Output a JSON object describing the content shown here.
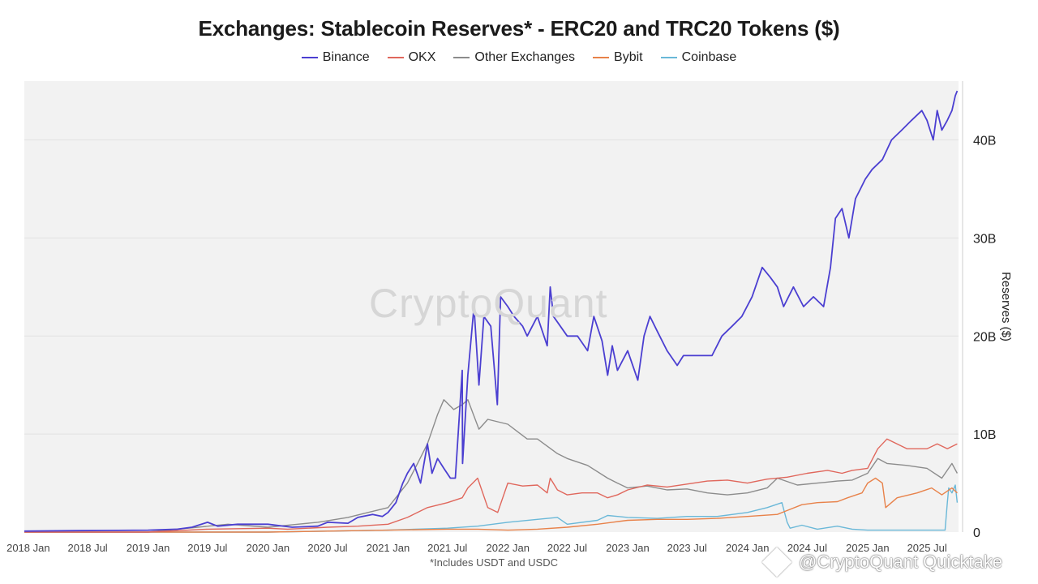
{
  "chart_data": {
    "type": "line",
    "title": "Exchanges: Stablecoin Reserves* - ERC20 and TRC20 Tokens ($)",
    "ylabel": "Reserves ($)",
    "xlabel": "",
    "footnote": "*Includes USDT and USDC",
    "watermark": "CryptoQuant",
    "attribution": "@CryptoQuant Quicktake",
    "legend_position": "top-center",
    "y_axis_position": "right",
    "grid": true,
    "ylim": [
      0,
      46
    ],
    "y_unit": "B",
    "yticks": [
      {
        "value": 0,
        "label": "0"
      },
      {
        "value": 10,
        "label": "10B"
      },
      {
        "value": 20,
        "label": "20B"
      },
      {
        "value": 30,
        "label": "30B"
      },
      {
        "value": 40,
        "label": "40B"
      }
    ],
    "xlim": [
      "2017-12-20",
      "2025-10-05"
    ],
    "xticks": [
      {
        "date": "2018-01-01",
        "label": "2018 Jan"
      },
      {
        "date": "2018-07-01",
        "label": "2018 Jul"
      },
      {
        "date": "2019-01-01",
        "label": "2019 Jan"
      },
      {
        "date": "2019-07-01",
        "label": "2019 Jul"
      },
      {
        "date": "2020-01-01",
        "label": "2020 Jan"
      },
      {
        "date": "2020-07-01",
        "label": "2020 Jul"
      },
      {
        "date": "2021-01-01",
        "label": "2021 Jan"
      },
      {
        "date": "2021-07-01",
        "label": "2021 Jul"
      },
      {
        "date": "2022-01-01",
        "label": "2022 Jan"
      },
      {
        "date": "2022-07-01",
        "label": "2022 Jul"
      },
      {
        "date": "2023-01-01",
        "label": "2023 Jan"
      },
      {
        "date": "2023-07-01",
        "label": "2023 Jul"
      },
      {
        "date": "2024-01-01",
        "label": "2024 Jan"
      },
      {
        "date": "2024-07-01",
        "label": "2024 Jul"
      },
      {
        "date": "2025-01-01",
        "label": "2025 Jan"
      },
      {
        "date": "2025-07-01",
        "label": "2025 Jul"
      }
    ],
    "series": [
      {
        "name": "Binance",
        "color": "#4b3fd1",
        "x": [
          "2017-12-20",
          "2018-06-01",
          "2019-01-01",
          "2019-04-01",
          "2019-05-15",
          "2019-07-01",
          "2019-08-01",
          "2019-10-01",
          "2020-01-01",
          "2020-03-15",
          "2020-06-01",
          "2020-07-01",
          "2020-09-01",
          "2020-10-01",
          "2020-11-15",
          "2020-12-15",
          "2021-01-01",
          "2021-01-25",
          "2021-02-15",
          "2021-03-01",
          "2021-03-20",
          "2021-04-10",
          "2021-05-01",
          "2021-05-15",
          "2021-06-01",
          "2021-06-20",
          "2021-07-10",
          "2021-07-25",
          "2021-08-15",
          "2021-08-16",
          "2021-09-01",
          "2021-09-20",
          "2021-10-05",
          "2021-10-20",
          "2021-11-10",
          "2021-11-30",
          "2021-12-10",
          "2022-01-01",
          "2022-01-20",
          "2022-02-15",
          "2022-03-01",
          "2022-04-01",
          "2022-05-01",
          "2022-05-10",
          "2022-05-20",
          "2022-06-10",
          "2022-07-01",
          "2022-08-01",
          "2022-09-01",
          "2022-09-20",
          "2022-10-15",
          "2022-11-01",
          "2022-11-15",
          "2022-12-01",
          "2023-01-01",
          "2023-02-01",
          "2023-02-20",
          "2023-03-10",
          "2023-04-01",
          "2023-05-01",
          "2023-06-01",
          "2023-06-20",
          "2023-07-15",
          "2023-08-15",
          "2023-09-15",
          "2023-10-15",
          "2023-11-15",
          "2023-12-15",
          "2024-01-15",
          "2024-02-15",
          "2024-03-10",
          "2024-04-01",
          "2024-04-20",
          "2024-05-20",
          "2024-06-20",
          "2024-07-20",
          "2024-08-20",
          "2024-09-10",
          "2024-09-25",
          "2024-10-15",
          "2024-11-05",
          "2024-11-25",
          "2024-12-10",
          "2024-12-25",
          "2025-01-15",
          "2025-02-15",
          "2025-03-15",
          "2025-04-15",
          "2025-05-15",
          "2025-06-15",
          "2025-07-01",
          "2025-07-20",
          "2025-08-01",
          "2025-08-15",
          "2025-09-01",
          "2025-09-15",
          "2025-09-25",
          "2025-10-01"
        ],
        "y": [
          0.1,
          0.15,
          0.2,
          0.3,
          0.5,
          1.0,
          0.6,
          0.8,
          0.8,
          0.5,
          0.6,
          1.0,
          0.9,
          1.5,
          1.8,
          1.6,
          2.0,
          3.0,
          5.0,
          6.0,
          7.0,
          5.0,
          9.0,
          6.0,
          7.5,
          6.5,
          5.5,
          5.5,
          16.5,
          7.0,
          16.0,
          23.0,
          15.0,
          22.0,
          21.0,
          13.0,
          24.0,
          23.0,
          22.0,
          21.0,
          20.0,
          22.0,
          19.0,
          25.0,
          22.0,
          21.0,
          20.0,
          20.0,
          18.5,
          22.0,
          19.5,
          16.0,
          19.0,
          16.5,
          18.5,
          15.5,
          20.0,
          22.0,
          20.5,
          18.5,
          17.0,
          18.0,
          18.0,
          18.0,
          18.0,
          20.0,
          21.0,
          22.0,
          24.0,
          27.0,
          26.0,
          25.0,
          23.0,
          25.0,
          23.0,
          24.0,
          23.0,
          27.0,
          32.0,
          33.0,
          30.0,
          34.0,
          35.0,
          36.0,
          37.0,
          38.0,
          40.0,
          41.0,
          42.0,
          43.0,
          42.0,
          40.0,
          43.0,
          41.0,
          42.0,
          43.0,
          44.5,
          45.0
        ]
      },
      {
        "name": "OKX",
        "color": "#e0675c",
        "x": [
          "2017-12-20",
          "2019-01-01",
          "2019-07-01",
          "2020-01-01",
          "2020-03-01",
          "2020-07-01",
          "2020-10-01",
          "2021-01-01",
          "2021-03-01",
          "2021-05-01",
          "2021-07-01",
          "2021-08-15",
          "2021-09-01",
          "2021-10-01",
          "2021-11-01",
          "2021-12-01",
          "2022-01-01",
          "2022-02-15",
          "2022-04-01",
          "2022-05-01",
          "2022-05-10",
          "2022-06-01",
          "2022-07-01",
          "2022-08-15",
          "2022-10-01",
          "2022-11-01",
          "2022-12-01",
          "2023-01-01",
          "2023-03-01",
          "2023-05-01",
          "2023-07-01",
          "2023-09-01",
          "2023-11-01",
          "2024-01-01",
          "2024-03-01",
          "2024-05-01",
          "2024-07-01",
          "2024-09-01",
          "2024-10-15",
          "2024-11-15",
          "2025-01-01",
          "2025-02-01",
          "2025-03-01",
          "2025-05-01",
          "2025-07-01",
          "2025-08-01",
          "2025-09-01",
          "2025-10-01"
        ],
        "y": [
          0.0,
          0.0,
          0.3,
          0.4,
          0.3,
          0.5,
          0.6,
          0.8,
          1.5,
          2.5,
          3.0,
          3.5,
          4.5,
          5.5,
          2.5,
          2.0,
          5.0,
          4.7,
          4.8,
          4.0,
          5.5,
          4.3,
          3.8,
          4.0,
          4.0,
          3.5,
          3.8,
          4.3,
          4.8,
          4.6,
          4.9,
          5.2,
          5.3,
          5.0,
          5.4,
          5.6,
          6.0,
          6.3,
          6.0,
          6.3,
          6.5,
          8.5,
          9.5,
          8.5,
          8.5,
          9.0,
          8.5,
          9.0
        ]
      },
      {
        "name": "Other Exchanges",
        "color": "#8c8c8c",
        "x": [
          "2017-12-20",
          "2019-01-01",
          "2019-06-01",
          "2019-09-01",
          "2020-01-01",
          "2020-04-01",
          "2020-06-01",
          "2020-09-01",
          "2020-11-01",
          "2021-01-01",
          "2021-03-01",
          "2021-04-01",
          "2021-05-01",
          "2021-06-01",
          "2021-06-20",
          "2021-07-20",
          "2021-08-15",
          "2021-09-01",
          "2021-10-05",
          "2021-11-01",
          "2022-01-01",
          "2022-03-01",
          "2022-04-01",
          "2022-06-01",
          "2022-07-01",
          "2022-09-01",
          "2022-11-01",
          "2022-12-01",
          "2023-01-01",
          "2023-03-01",
          "2023-05-01",
          "2023-07-01",
          "2023-09-01",
          "2023-11-01",
          "2024-01-01",
          "2024-03-01",
          "2024-04-01",
          "2024-06-01",
          "2024-08-01",
          "2024-10-01",
          "2024-11-15",
          "2025-01-01",
          "2025-02-01",
          "2025-03-01",
          "2025-05-01",
          "2025-07-01",
          "2025-08-15",
          "2025-09-15",
          "2025-10-01"
        ],
        "y": [
          0.0,
          0.0,
          0.5,
          0.8,
          0.5,
          0.8,
          1.0,
          1.5,
          2.0,
          2.5,
          5.0,
          7.0,
          9.0,
          12.0,
          13.5,
          12.5,
          13.0,
          13.5,
          10.5,
          11.5,
          11.0,
          9.5,
          9.5,
          8.0,
          7.5,
          6.8,
          5.5,
          5.0,
          4.5,
          4.7,
          4.3,
          4.4,
          4.0,
          3.8,
          4.0,
          4.5,
          5.5,
          4.8,
          5.0,
          5.2,
          5.3,
          6.0,
          7.5,
          7.0,
          6.8,
          6.5,
          5.5,
          7.0,
          6.0
        ]
      },
      {
        "name": "Bybit",
        "color": "#e8824a",
        "x": [
          "2017-12-20",
          "2020-01-01",
          "2020-07-01",
          "2021-01-01",
          "2021-07-01",
          "2021-10-01",
          "2022-01-01",
          "2022-04-01",
          "2022-07-01",
          "2022-10-01",
          "2022-11-15",
          "2023-01-01",
          "2023-04-01",
          "2023-07-01",
          "2023-10-01",
          "2024-01-01",
          "2024-04-01",
          "2024-05-01",
          "2024-06-15",
          "2024-08-01",
          "2024-10-01",
          "2024-11-01",
          "2024-12-15",
          "2025-01-01",
          "2025-01-25",
          "2025-02-15",
          "2025-02-25",
          "2025-04-01",
          "2025-06-01",
          "2025-07-15",
          "2025-08-15",
          "2025-09-15",
          "2025-10-01"
        ],
        "y": [
          0.0,
          0.0,
          0.1,
          0.2,
          0.3,
          0.3,
          0.2,
          0.3,
          0.5,
          0.8,
          1.0,
          1.2,
          1.3,
          1.3,
          1.4,
          1.6,
          1.8,
          2.2,
          2.8,
          3.0,
          3.1,
          3.5,
          4.0,
          5.0,
          5.5,
          5.0,
          2.5,
          3.5,
          4.0,
          4.5,
          3.8,
          4.5,
          4.0
        ]
      },
      {
        "name": "Coinbase",
        "color": "#6ab8d8",
        "x": [
          "2017-12-20",
          "2020-01-01",
          "2020-07-01",
          "2021-01-01",
          "2021-07-01",
          "2021-10-01",
          "2022-01-01",
          "2022-04-01",
          "2022-06-01",
          "2022-07-01",
          "2022-10-01",
          "2022-11-01",
          "2023-01-01",
          "2023-04-01",
          "2023-07-01",
          "2023-10-01",
          "2024-01-01",
          "2024-03-01",
          "2024-04-15",
          "2024-05-01",
          "2024-05-10",
          "2024-06-15",
          "2024-08-01",
          "2024-10-01",
          "2024-11-15",
          "2025-01-01",
          "2025-03-01",
          "2025-05-01",
          "2025-07-01",
          "2025-08-25",
          "2025-09-01",
          "2025-09-05",
          "2025-09-15",
          "2025-09-25",
          "2025-10-01"
        ],
        "y": [
          0.0,
          0.0,
          0.1,
          0.2,
          0.4,
          0.6,
          1.0,
          1.3,
          1.5,
          0.8,
          1.2,
          1.7,
          1.5,
          1.4,
          1.6,
          1.6,
          2.0,
          2.5,
          3.0,
          1.0,
          0.4,
          0.7,
          0.3,
          0.6,
          0.3,
          0.2,
          0.2,
          0.2,
          0.2,
          0.2,
          3.0,
          4.5,
          4.0,
          4.8,
          3.0
        ]
      }
    ]
  }
}
